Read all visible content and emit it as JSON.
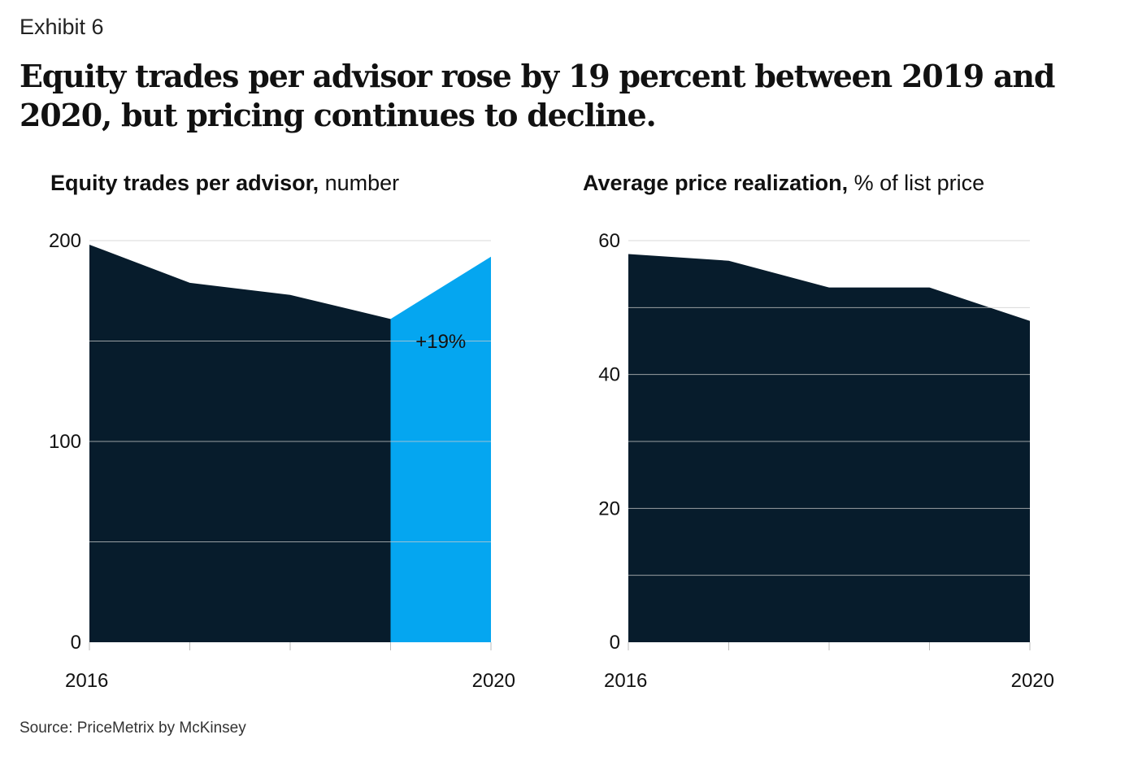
{
  "exhibit": "Exhibit 6",
  "headline": "Equity trades per advisor rose by 19 percent between 2019 and 2020, but pricing continues to decline.",
  "source": "Source: PriceMetrix by McKinsey",
  "colors": {
    "dark": "#071c2c",
    "accent": "#05a6f0",
    "grid": "#cccccc"
  },
  "chart_data": [
    {
      "type": "area",
      "title_bold": "Equity trades per advisor,",
      "title_unit": " number",
      "x": [
        2016,
        2017,
        2018,
        2019,
        2020
      ],
      "x_tick_labels": [
        "2016",
        "2020"
      ],
      "values": [
        198,
        179,
        173,
        161,
        192
      ],
      "ylim": [
        0,
        200
      ],
      "y_ticks": [
        0,
        100,
        200
      ],
      "y_gridlines": [
        0,
        50,
        100,
        150,
        200
      ],
      "highlight": {
        "from_index": 3,
        "to_index": 4,
        "label": "+19%"
      },
      "grid": true
    },
    {
      "type": "area",
      "title_bold": "Average price realization,",
      "title_unit": " % of list price",
      "x": [
        2016,
        2017,
        2018,
        2019,
        2020
      ],
      "x_tick_labels": [
        "2016",
        "2020"
      ],
      "values": [
        58,
        57,
        53,
        53,
        48
      ],
      "ylim": [
        0,
        60
      ],
      "y_ticks": [
        0,
        20,
        40,
        60
      ],
      "y_gridlines": [
        0,
        10,
        20,
        30,
        40,
        50,
        60
      ],
      "grid": true
    }
  ]
}
